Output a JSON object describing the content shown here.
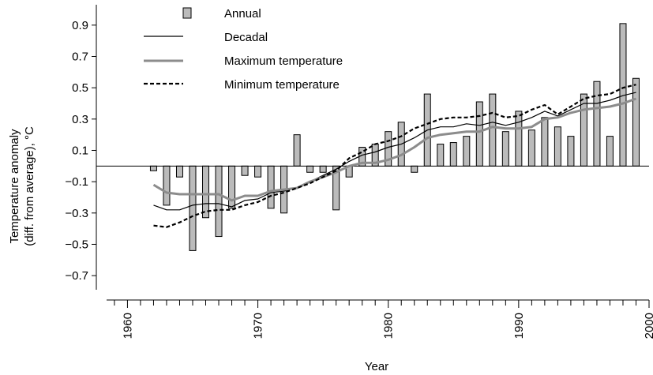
{
  "chart_data": {
    "type": "bar",
    "xlabel": "Year",
    "ylabel_line1": "Temperature anomaly",
    "ylabel_line2": "(diff. from average), °C",
    "xlim": [
      1958.4,
      2000
    ],
    "ylim": [
      -0.78,
      1.0
    ],
    "x_ticks": [
      1960,
      1970,
      1980,
      1990,
      2000
    ],
    "y_ticks": [
      0.9,
      0.7,
      0.5,
      0.3,
      0.1,
      -0.1,
      -0.3,
      -0.5,
      -0.7
    ],
    "y_tick_labels": [
      "0.9",
      "0.7",
      "0.5",
      "0.3",
      "0.1",
      "−0.1",
      "−0.3",
      "−0.5",
      "−0.7"
    ],
    "legend": {
      "placement": "top-left",
      "annual": "Annual",
      "decadal": "Decadal",
      "maximum": "Maximum temperature",
      "minimum": "Minimum temperature"
    },
    "colors": {
      "bar": "#bbbbbb",
      "decadal": "#000000",
      "maximum": "#8c8c8c",
      "minimum": "#000000"
    },
    "annual": {
      "years": [
        1962,
        1963,
        1964,
        1965,
        1966,
        1967,
        1968,
        1969,
        1970,
        1971,
        1972,
        1973,
        1974,
        1975,
        1976,
        1977,
        1978,
        1979,
        1980,
        1981,
        1982,
        1983,
        1984,
        1985,
        1986,
        1987,
        1988,
        1989,
        1990,
        1991,
        1992,
        1993,
        1994,
        1995,
        1996,
        1997,
        1998,
        1999
      ],
      "values": [
        -0.03,
        -0.25,
        -0.07,
        -0.54,
        -0.33,
        -0.45,
        -0.27,
        -0.06,
        -0.07,
        -0.27,
        -0.3,
        0.2,
        -0.04,
        -0.04,
        -0.28,
        -0.07,
        0.12,
        0.14,
        0.22,
        0.28,
        -0.04,
        0.46,
        0.14,
        0.15,
        0.19,
        0.41,
        0.46,
        0.22,
        0.35,
        0.23,
        0.31,
        0.25,
        0.19,
        0.46,
        0.54,
        0.19,
        0.91,
        0.56
      ]
    },
    "series": [
      {
        "name": "Decadal",
        "years": [
          1962,
          1963,
          1964,
          1965,
          1966,
          1967,
          1968,
          1969,
          1970,
          1971,
          1972,
          1973,
          1974,
          1975,
          1976,
          1977,
          1978,
          1979,
          1980,
          1981,
          1982,
          1983,
          1984,
          1985,
          1986,
          1987,
          1988,
          1989,
          1990,
          1991,
          1992,
          1993,
          1994,
          1995,
          1996,
          1997,
          1998,
          1999
        ],
        "values": [
          -0.25,
          -0.28,
          -0.28,
          -0.25,
          -0.24,
          -0.24,
          -0.26,
          -0.22,
          -0.21,
          -0.17,
          -0.16,
          -0.14,
          -0.1,
          -0.06,
          -0.02,
          0.03,
          0.07,
          0.09,
          0.12,
          0.14,
          0.18,
          0.23,
          0.25,
          0.25,
          0.27,
          0.26,
          0.28,
          0.26,
          0.28,
          0.31,
          0.35,
          0.32,
          0.36,
          0.4,
          0.4,
          0.42,
          0.45,
          0.47
        ]
      },
      {
        "name": "Maximum temperature",
        "years": [
          1962,
          1963,
          1964,
          1965,
          1966,
          1967,
          1968,
          1969,
          1970,
          1971,
          1972,
          1973,
          1974,
          1975,
          1976,
          1977,
          1978,
          1979,
          1980,
          1981,
          1982,
          1983,
          1984,
          1985,
          1986,
          1987,
          1988,
          1989,
          1990,
          1991,
          1992,
          1993,
          1994,
          1995,
          1996,
          1997,
          1998,
          1999
        ],
        "values": [
          -0.12,
          -0.17,
          -0.18,
          -0.18,
          -0.18,
          -0.18,
          -0.22,
          -0.19,
          -0.19,
          -0.16,
          -0.15,
          -0.14,
          -0.1,
          -0.07,
          -0.04,
          0.0,
          0.02,
          0.02,
          0.04,
          0.07,
          0.12,
          0.18,
          0.2,
          0.21,
          0.22,
          0.22,
          0.25,
          0.24,
          0.24,
          0.25,
          0.3,
          0.31,
          0.34,
          0.36,
          0.37,
          0.38,
          0.4,
          0.43
        ]
      },
      {
        "name": "Minimum temperature",
        "years": [
          1962,
          1963,
          1964,
          1965,
          1966,
          1967,
          1968,
          1969,
          1970,
          1971,
          1972,
          1973,
          1974,
          1975,
          1976,
          1977,
          1978,
          1979,
          1980,
          1981,
          1982,
          1983,
          1984,
          1985,
          1986,
          1987,
          1988,
          1989,
          1990,
          1991,
          1992,
          1993,
          1994,
          1995,
          1996,
          1997,
          1998,
          1999
        ],
        "values": [
          -0.38,
          -0.39,
          -0.36,
          -0.32,
          -0.29,
          -0.28,
          -0.28,
          -0.25,
          -0.23,
          -0.19,
          -0.17,
          -0.14,
          -0.11,
          -0.07,
          -0.03,
          0.05,
          0.09,
          0.14,
          0.16,
          0.19,
          0.24,
          0.27,
          0.3,
          0.31,
          0.31,
          0.32,
          0.34,
          0.31,
          0.32,
          0.36,
          0.39,
          0.33,
          0.38,
          0.43,
          0.45,
          0.46,
          0.5,
          0.52
        ]
      }
    ]
  }
}
